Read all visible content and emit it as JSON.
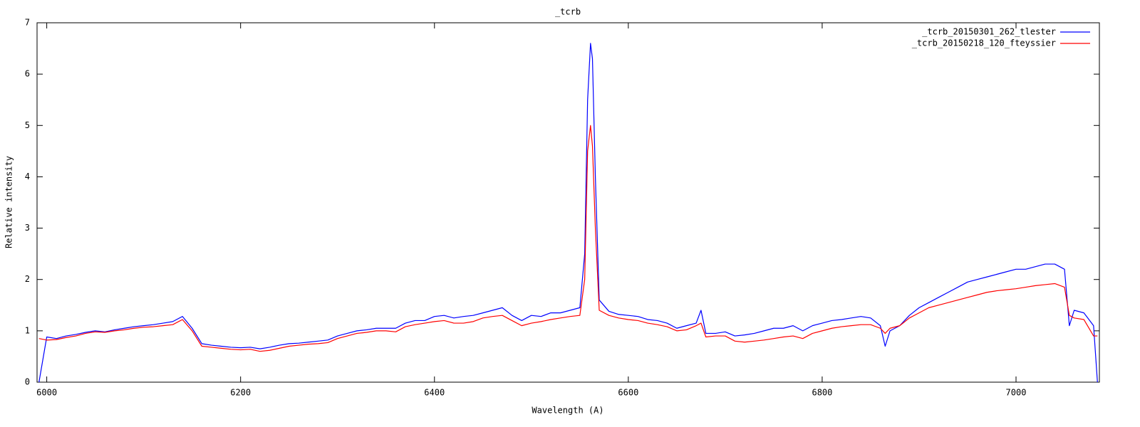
{
  "chart_data": {
    "type": "line",
    "title": "_tcrb",
    "x_label": "Wavelength (A)",
    "y_label": "Relative intensity",
    "xlim": [
      5990,
      7086
    ],
    "ylim": [
      0,
      7
    ],
    "xticks": [
      6000,
      6200,
      6400,
      6600,
      6800,
      7000
    ],
    "yticks": [
      0,
      1,
      2,
      3,
      4,
      5,
      6,
      7
    ],
    "grid": false,
    "legend": "top-right",
    "x": [
      5992,
      6000,
      6010,
      6020,
      6030,
      6040,
      6050,
      6060,
      6070,
      6080,
      6090,
      6100,
      6110,
      6120,
      6130,
      6140,
      6150,
      6160,
      6170,
      6180,
      6190,
      6200,
      6210,
      6220,
      6230,
      6240,
      6250,
      6260,
      6270,
      6280,
      6290,
      6300,
      6310,
      6320,
      6330,
      6340,
      6350,
      6360,
      6370,
      6380,
      6390,
      6400,
      6410,
      6420,
      6430,
      6440,
      6450,
      6460,
      6470,
      6480,
      6490,
      6500,
      6510,
      6520,
      6530,
      6540,
      6550,
      6555,
      6558,
      6561,
      6563,
      6566,
      6570,
      6580,
      6590,
      6600,
      6610,
      6620,
      6630,
      6640,
      6650,
      6660,
      6670,
      6675,
      6680,
      6690,
      6700,
      6710,
      6720,
      6730,
      6740,
      6750,
      6760,
      6770,
      6780,
      6790,
      6800,
      6810,
      6820,
      6830,
      6840,
      6850,
      6860,
      6865,
      6870,
      6880,
      6890,
      6900,
      6910,
      6920,
      6930,
      6940,
      6950,
      6960,
      6970,
      6980,
      6990,
      7000,
      7010,
      7020,
      7030,
      7040,
      7050,
      7055,
      7060,
      7070,
      7080,
      7084
    ],
    "series": [
      {
        "name": "_tcrb_20150301_262_tlester",
        "color": "#0000ff",
        "values": [
          0,
          0.88,
          0.85,
          0.9,
          0.93,
          0.97,
          1.0,
          0.98,
          1.02,
          1.05,
          1.08,
          1.1,
          1.12,
          1.15,
          1.18,
          1.28,
          1.05,
          0.75,
          0.72,
          0.7,
          0.68,
          0.67,
          0.68,
          0.65,
          0.68,
          0.72,
          0.75,
          0.76,
          0.78,
          0.8,
          0.82,
          0.9,
          0.95,
          1.0,
          1.02,
          1.05,
          1.05,
          1.05,
          1.15,
          1.2,
          1.2,
          1.28,
          1.3,
          1.25,
          1.28,
          1.3,
          1.35,
          1.4,
          1.45,
          1.3,
          1.2,
          1.3,
          1.28,
          1.35,
          1.35,
          1.4,
          1.45,
          2.5,
          5.5,
          6.6,
          6.3,
          4.0,
          1.6,
          1.38,
          1.32,
          1.3,
          1.28,
          1.22,
          1.2,
          1.15,
          1.05,
          1.1,
          1.15,
          1.4,
          0.95,
          0.95,
          0.98,
          0.9,
          0.92,
          0.95,
          1.0,
          1.05,
          1.05,
          1.1,
          1.0,
          1.1,
          1.15,
          1.2,
          1.22,
          1.25,
          1.28,
          1.25,
          1.1,
          0.7,
          1.0,
          1.1,
          1.3,
          1.45,
          1.55,
          1.65,
          1.75,
          1.85,
          1.95,
          2.0,
          2.05,
          2.1,
          2.15,
          2.2,
          2.2,
          2.25,
          2.3,
          2.3,
          2.2,
          1.1,
          1.4,
          1.35,
          1.1,
          0
        ]
      },
      {
        "name": "_tcrb_20150218_120_fteyssier",
        "color": "#ff0000",
        "values": [
          0.85,
          0.82,
          0.83,
          0.87,
          0.9,
          0.95,
          0.98,
          0.97,
          1.0,
          1.02,
          1.05,
          1.07,
          1.08,
          1.1,
          1.12,
          1.22,
          1.0,
          0.7,
          0.68,
          0.66,
          0.64,
          0.63,
          0.64,
          0.6,
          0.62,
          0.66,
          0.7,
          0.72,
          0.74,
          0.75,
          0.77,
          0.85,
          0.9,
          0.95,
          0.97,
          1.0,
          1.0,
          0.98,
          1.08,
          1.12,
          1.15,
          1.18,
          1.2,
          1.15,
          1.15,
          1.18,
          1.25,
          1.28,
          1.3,
          1.2,
          1.1,
          1.15,
          1.18,
          1.22,
          1.25,
          1.28,
          1.3,
          2.0,
          4.5,
          5.0,
          4.6,
          3.0,
          1.4,
          1.3,
          1.25,
          1.22,
          1.2,
          1.15,
          1.12,
          1.08,
          1.0,
          1.02,
          1.1,
          1.15,
          0.88,
          0.9,
          0.9,
          0.8,
          0.78,
          0.8,
          0.82,
          0.85,
          0.88,
          0.9,
          0.85,
          0.95,
          1.0,
          1.05,
          1.08,
          1.1,
          1.12,
          1.12,
          1.05,
          0.95,
          1.05,
          1.1,
          1.25,
          1.35,
          1.45,
          1.5,
          1.55,
          1.6,
          1.65,
          1.7,
          1.75,
          1.78,
          1.8,
          1.82,
          1.85,
          1.88,
          1.9,
          1.92,
          1.85,
          1.3,
          1.25,
          1.22,
          0.9,
          0.9
        ]
      }
    ]
  }
}
